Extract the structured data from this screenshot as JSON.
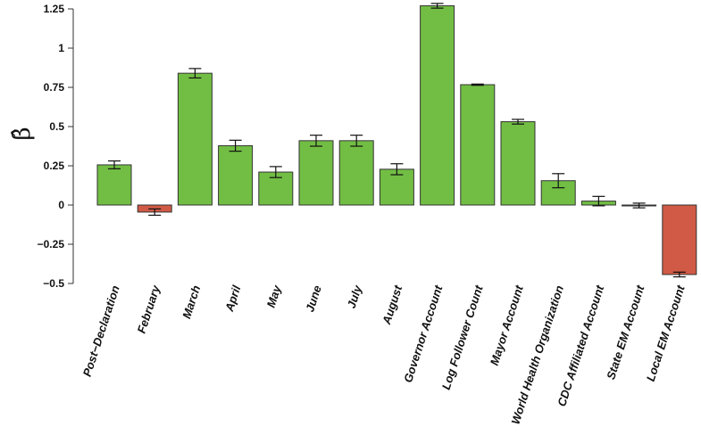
{
  "chart_data": {
    "type": "bar",
    "title": "",
    "xlabel": "",
    "ylabel": "β̂",
    "ylim": [
      -0.5,
      1.25
    ],
    "yticks": [
      1.25,
      1,
      0.75,
      0.5,
      0.25,
      0,
      -0.25,
      -0.5
    ],
    "ytick_labels": [
      "1.25",
      "1",
      "0.75",
      "0.5",
      "0.25",
      "0",
      "−0.25",
      "−0.5"
    ],
    "grid": false,
    "legend": null,
    "categories": [
      "Post−Declaration",
      "February",
      "March",
      "April",
      "May",
      "June",
      "July",
      "August",
      "Governor Account",
      "Log Follower Count",
      "Mayor Account",
      "World Health Organization",
      "CDC Affiliated Account",
      "State EM Account",
      "Local EM Account"
    ],
    "values": [
      0.256,
      -0.045,
      0.84,
      0.378,
      0.21,
      0.41,
      0.41,
      0.228,
      1.27,
      0.767,
      0.531,
      0.155,
      0.025,
      -0.003,
      -0.443
    ],
    "errors": [
      0.025,
      0.02,
      0.03,
      0.035,
      0.035,
      0.035,
      0.035,
      0.035,
      0.015,
      0.004,
      0.015,
      0.045,
      0.03,
      0.015,
      0.015
    ],
    "colors": {
      "positive": "#72BE44",
      "negative": "#D05A45",
      "border": "#333333",
      "axis": "#333333"
    }
  }
}
